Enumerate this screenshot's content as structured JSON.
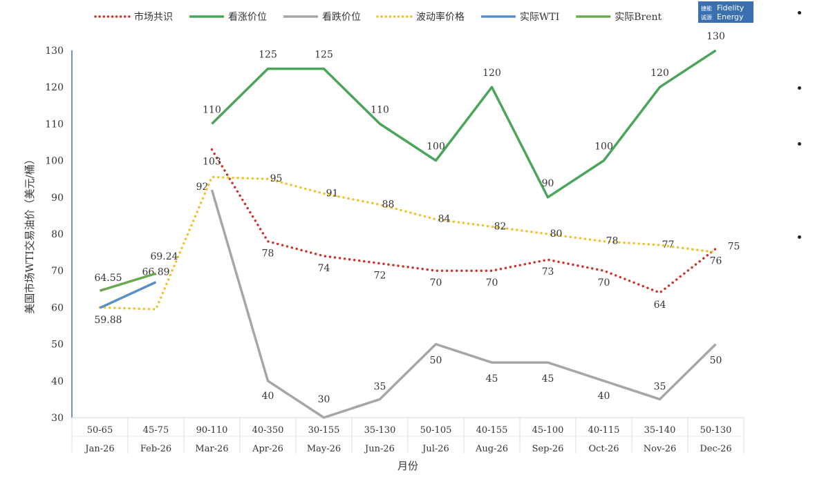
{
  "logo": {
    "cn": "捷能诚源",
    "en1": "Fidelity",
    "en2": "Energy",
    "color": "#3a6fb0"
  },
  "chart_data": {
    "type": "line",
    "ylabel": "美国市场WTI交易油价（美元/桶）",
    "xlabel": "月份",
    "ylim": [
      30,
      130
    ],
    "yticks": [
      30,
      40,
      50,
      60,
      70,
      80,
      90,
      100,
      110,
      120,
      130
    ],
    "categories": [
      "Jan-26",
      "Feb-26",
      "Mar-26",
      "Apr-26",
      "May-26",
      "Jun-26",
      "Jul-26",
      "Aug-26",
      "Sep-26",
      "Oct-26",
      "Nov-26",
      "Dec-26"
    ],
    "ranges": [
      "50-65",
      "45-75",
      "90-110",
      "40-350",
      "30-155",
      "35-130",
      "50-105",
      "40-155",
      "45-100",
      "40-115",
      "35-140",
      "50-130"
    ],
    "legend_placement": "top",
    "series": [
      {
        "name": "市场共识",
        "style": "dotted",
        "color": "#c8372d",
        "values": [
          null,
          null,
          103,
          78,
          74,
          72,
          70,
          70,
          73,
          70,
          64,
          76
        ],
        "labels": [
          null,
          null,
          "103",
          "78",
          "74",
          "72",
          "70",
          "70",
          "73",
          "70",
          "64",
          "76"
        ]
      },
      {
        "name": "看涨价位",
        "style": "solid",
        "color": "#4aa55a",
        "values": [
          null,
          null,
          110,
          125,
          125,
          110,
          100,
          120,
          90,
          100,
          120,
          130
        ],
        "labels": [
          null,
          null,
          "110",
          "125",
          "125",
          "110",
          "100",
          "120",
          "90",
          "100",
          "120",
          "130"
        ]
      },
      {
        "name": "看跌价位",
        "style": "solid",
        "color": "#a6a6a6",
        "values": [
          null,
          null,
          92,
          40,
          30,
          35,
          50,
          45,
          45,
          40,
          35,
          50
        ],
        "labels": [
          null,
          null,
          "92",
          "40",
          "30",
          "35",
          "50",
          "45",
          "45",
          "40",
          "35",
          "50"
        ]
      },
      {
        "name": "波动率价格",
        "style": "dotted",
        "color": "#f2c12e",
        "values": [
          60,
          59.5,
          95.5,
          95,
          91,
          88,
          84,
          82,
          80,
          78,
          77,
          75
        ],
        "labels": [
          null,
          null,
          null,
          "95",
          "91",
          "88",
          "84",
          "82",
          "80",
          "78",
          "77",
          "75"
        ]
      },
      {
        "name": "实际WTI",
        "style": "solid",
        "color": "#5b8fc9",
        "values": [
          59.88,
          66.89,
          null,
          null,
          null,
          null,
          null,
          null,
          null,
          null,
          null,
          null
        ],
        "labels": [
          "59.88",
          "66.89",
          null,
          null,
          null,
          null,
          null,
          null,
          null,
          null,
          null,
          null
        ]
      },
      {
        "name": "实际Brent",
        "style": "solid",
        "color": "#6aa84f",
        "values": [
          64.55,
          69.24,
          null,
          null,
          null,
          null,
          null,
          null,
          null,
          null,
          null,
          null
        ],
        "labels": [
          "64.55",
          "69.24",
          null,
          null,
          null,
          null,
          null,
          null,
          null,
          null,
          null,
          null
        ]
      }
    ]
  }
}
